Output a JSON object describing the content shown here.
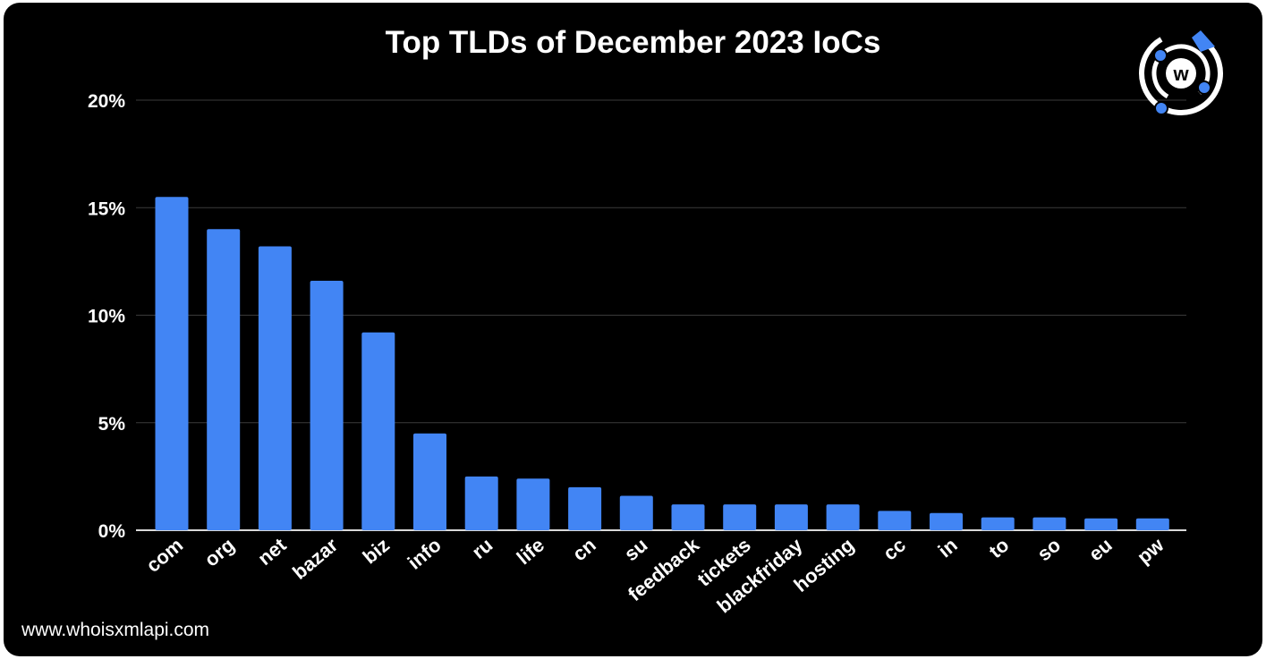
{
  "watermark": "www.whoisxmlapi.com",
  "logo": {
    "icon": "whoisxmlapi-logo",
    "letter": "w",
    "accent": "#4285f4"
  },
  "chart_data": {
    "type": "bar",
    "title": "Top TLDs of December 2023 IoCs",
    "xlabel": "",
    "ylabel": "",
    "categories": [
      "com",
      "org",
      "net",
      "bazar",
      "biz",
      "info",
      "ru",
      "life",
      "cn",
      "su",
      "feedback",
      "tickets",
      "blackfriday",
      "hosting",
      "cc",
      "in",
      "to",
      "so",
      "eu",
      "pw"
    ],
    "values": [
      15.5,
      14.0,
      13.2,
      11.6,
      9.2,
      4.5,
      2.5,
      2.4,
      2.0,
      1.6,
      1.2,
      1.2,
      1.2,
      1.2,
      0.9,
      0.8,
      0.6,
      0.6,
      0.55,
      0.55
    ],
    "ylim": [
      0,
      20
    ],
    "yticks": [
      0,
      5,
      10,
      15,
      20
    ],
    "ytick_labels": [
      "0%",
      "5%",
      "10%",
      "15%",
      "20%"
    ],
    "grid": true,
    "bar_color": "#4285f4",
    "background": "#000000"
  }
}
